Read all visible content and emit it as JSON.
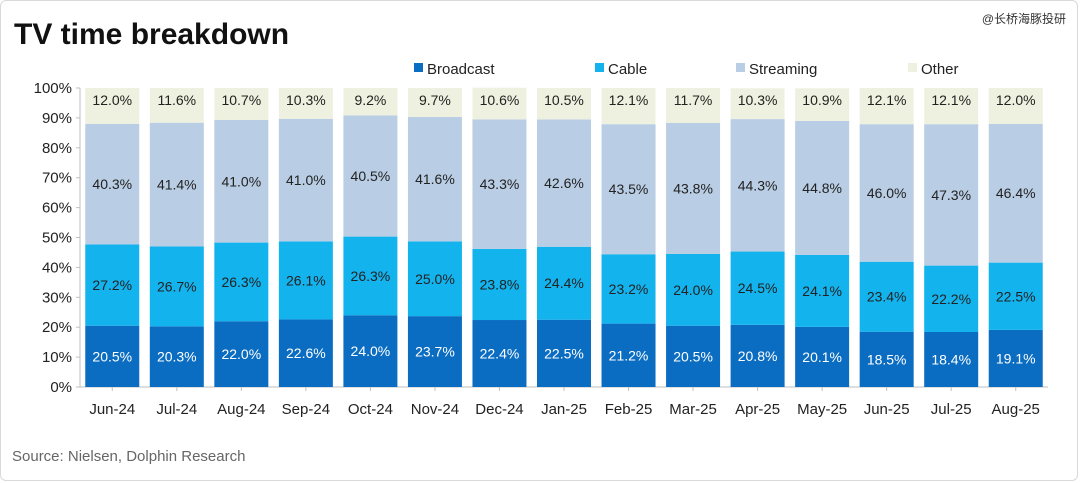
{
  "header": {
    "title": "TV time breakdown",
    "watermark": "@长桥海豚投研"
  },
  "footer": {
    "source": "Source:  Nielsen,  Dolphin Research"
  },
  "colors": {
    "broadcast": "#0a6dc2",
    "cable": "#13b3ee",
    "streaming": "#b9cde4",
    "other": "#eef1df",
    "axis": "#bfbfbf",
    "text": "#222222"
  },
  "chart_data": {
    "type": "bar",
    "stacked": true,
    "percent_stacked": true,
    "title": "TV time breakdown",
    "categories": [
      "Jun-24",
      "Jul-24",
      "Aug-24",
      "Sep-24",
      "Oct-24",
      "Nov-24",
      "Dec-24",
      "Jan-25",
      "Feb-25",
      "Mar-25",
      "Apr-25",
      "May-25",
      "Jun-25",
      "Jul-25",
      "Aug-25"
    ],
    "series": [
      {
        "key": "broadcast",
        "name": "Broadcast",
        "values": [
          20.5,
          20.3,
          22.0,
          22.6,
          24.0,
          23.7,
          22.4,
          22.5,
          21.2,
          20.5,
          20.8,
          20.1,
          18.5,
          18.4,
          19.1
        ],
        "labels": [
          "20.5%",
          "20.3%",
          "22.0%",
          "22.6%",
          "24.0%",
          "23.7%",
          "22.4%",
          "22.5%",
          "21.2%",
          "20.5%",
          "20.8%",
          "20.1%",
          "18.5%",
          "18.4%",
          "19.1%"
        ]
      },
      {
        "key": "cable",
        "name": "Cable",
        "values": [
          27.2,
          26.7,
          26.3,
          26.1,
          26.3,
          25.0,
          23.8,
          24.4,
          23.2,
          24.0,
          24.5,
          24.1,
          23.4,
          22.2,
          22.5
        ],
        "labels": [
          "27.2%",
          "26.7%",
          "26.3%",
          "26.1%",
          "26.3%",
          "25.0%",
          "23.8%",
          "24.4%",
          "23.2%",
          "24.0%",
          "24.5%",
          "24.1%",
          "23.4%",
          "22.2%",
          "22.5%"
        ]
      },
      {
        "key": "streaming",
        "name": "Streaming",
        "values": [
          40.3,
          41.4,
          41.0,
          41.0,
          40.5,
          41.6,
          43.3,
          42.6,
          43.5,
          43.8,
          44.3,
          44.8,
          46.0,
          47.3,
          46.4
        ],
        "labels": [
          "40.3%",
          "41.4%",
          "41.0%",
          "41.0%",
          "40.5%",
          "41.6%",
          "43.3%",
          "42.6%",
          "43.5%",
          "43.8%",
          "44.3%",
          "44.8%",
          "46.0%",
          "47.3%",
          "46.4%"
        ]
      },
      {
        "key": "other",
        "name": "Other",
        "values": [
          12.0,
          11.6,
          10.7,
          10.3,
          9.2,
          9.7,
          10.6,
          10.5,
          12.1,
          11.7,
          10.3,
          10.9,
          12.1,
          12.1,
          12.0
        ],
        "labels": [
          "12.0%",
          "11.6%",
          "10.7%",
          "10.3%",
          "9.2%",
          "9.7%",
          "10.6%",
          "10.5%",
          "12.1%",
          "11.7%",
          "10.3%",
          "10.9%",
          "12.1%",
          "12.1%",
          "12.0%"
        ]
      }
    ],
    "ylim": [
      0,
      100
    ],
    "yticks": [
      "0%",
      "10%",
      "20%",
      "30%",
      "40%",
      "50%",
      "60%",
      "70%",
      "80%",
      "90%",
      "100%"
    ],
    "legend_position": "top",
    "grid": false
  }
}
